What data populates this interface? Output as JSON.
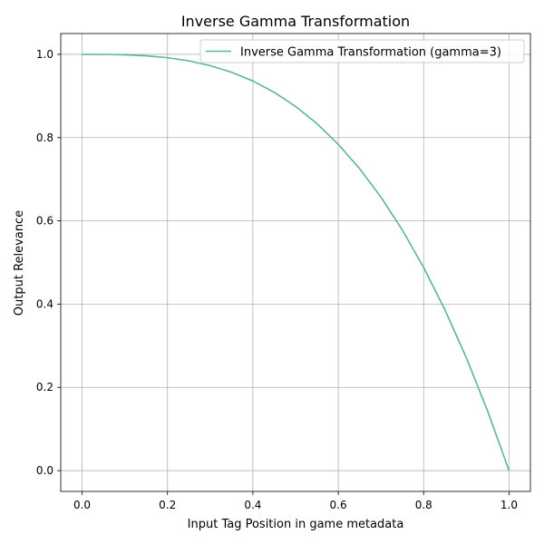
{
  "chart_data": {
    "type": "line",
    "title": "Inverse Gamma Transformation",
    "xlabel": "Input Tag Position in game metadata",
    "ylabel": "Output Relevance",
    "xlim": [
      -0.05,
      1.05
    ],
    "ylim": [
      -0.05,
      1.05
    ],
    "xticks": [
      0.0,
      0.2,
      0.4,
      0.6,
      0.8,
      1.0
    ],
    "xtick_labels": [
      "0.0",
      "0.2",
      "0.4",
      "0.6",
      "0.8",
      "1.0"
    ],
    "yticks": [
      0.0,
      0.2,
      0.4,
      0.6,
      0.8,
      1.0
    ],
    "ytick_labels": [
      "0.0",
      "0.2",
      "0.4",
      "0.6",
      "0.8",
      "1.0"
    ],
    "grid": true,
    "legend_position": "top-right",
    "series": [
      {
        "name": "Inverse Gamma Transformation (gamma=3)",
        "color": "#5ab4a0",
        "x": [
          0.0,
          0.05,
          0.1,
          0.15,
          0.2,
          0.25,
          0.3,
          0.35,
          0.4,
          0.45,
          0.5,
          0.55,
          0.6,
          0.65,
          0.7,
          0.75,
          0.8,
          0.85,
          0.9,
          0.95,
          1.0
        ],
        "y": [
          1.0,
          0.9999,
          0.999,
          0.9966,
          0.992,
          0.9844,
          0.973,
          0.9571,
          0.936,
          0.9089,
          0.875,
          0.8336,
          0.784,
          0.7254,
          0.657,
          0.5781,
          0.488,
          0.3859,
          0.271,
          0.1426,
          0.0
        ]
      }
    ]
  }
}
